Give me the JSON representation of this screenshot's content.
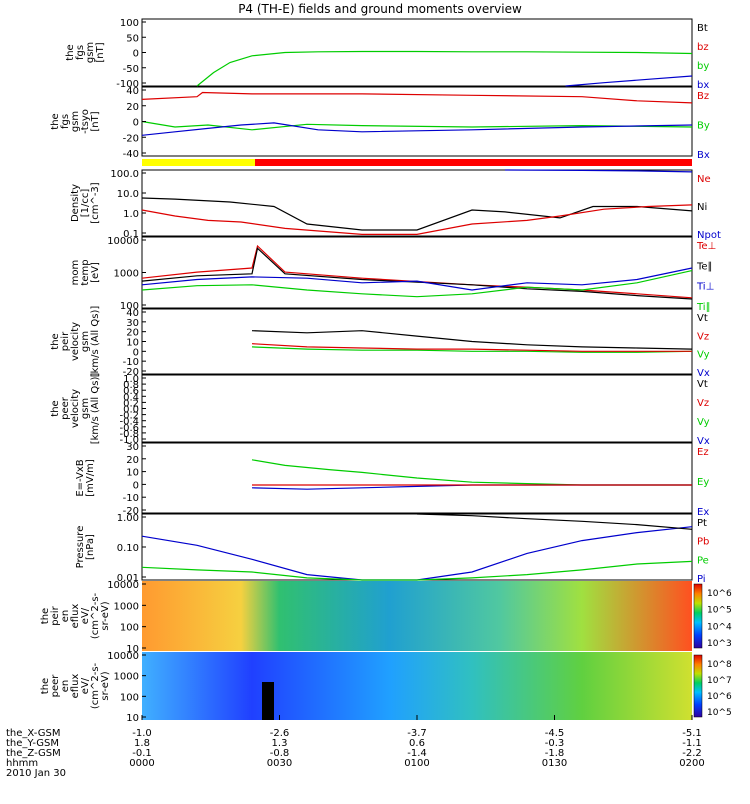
{
  "title": "P4 (TH-E) fields and ground moments overview",
  "colors": {
    "black": "#000000",
    "red": "#dd0000",
    "green": "#00cc00",
    "blue": "#0000cc",
    "yellow": "#ffff00",
    "barred": "#ff0000"
  },
  "chart_data": [
    {
      "id": "p1",
      "type": "line",
      "ylabel": [
        "the",
        "fgs",
        "gsm",
        "[nT]"
      ],
      "yticks": [
        "100",
        "50",
        "0",
        "-50",
        "-100"
      ],
      "ylim": [
        -100,
        100
      ],
      "legend": [
        {
          "name": "Bt",
          "color": "black"
        },
        {
          "name": "bz",
          "color": "red"
        },
        {
          "name": "by",
          "color": "green"
        },
        {
          "name": "bx",
          "color": "blue"
        }
      ],
      "series": [
        {
          "name": "by",
          "color": "green",
          "x": [
            0.5,
            0.65,
            0.8,
            1.0,
            1.3,
            1.6,
            2.0,
            2.5,
            3.0,
            3.5,
            4.0,
            4.5,
            5.0
          ],
          "y": [
            -100,
            -60,
            -30,
            -10,
            0,
            2,
            3,
            3,
            2,
            2,
            1,
            0,
            -3
          ]
        },
        {
          "name": "bx",
          "color": "blue",
          "x": [
            3.85,
            4.2,
            4.6,
            5.0
          ],
          "y": [
            -100,
            -90,
            -80,
            -70
          ]
        }
      ]
    },
    {
      "id": "p2",
      "type": "line",
      "ylabel": [
        "the",
        "fgs",
        "gsm",
        "-tsyo",
        "[nT]"
      ],
      "yticks": [
        "40",
        "20",
        "0",
        "-20",
        "-40"
      ],
      "ylim": [
        -50,
        50
      ],
      "legend": [
        {
          "name": "Bz",
          "color": "red"
        },
        {
          "name": "By",
          "color": "green"
        },
        {
          "name": "Bx",
          "color": "blue"
        }
      ],
      "series": [
        {
          "name": "Bz",
          "color": "red",
          "x": [
            0.0,
            0.5,
            0.55,
            1.0,
            2.0,
            3.0,
            4.0,
            4.5,
            5.0
          ],
          "y": [
            32,
            36,
            42,
            40,
            40,
            38,
            36,
            30,
            27
          ]
        },
        {
          "name": "By",
          "color": "green",
          "x": [
            0.0,
            0.3,
            0.6,
            1.0,
            1.5,
            2.0,
            3.0,
            4.0,
            5.0
          ],
          "y": [
            0,
            -8,
            -5,
            -12,
            -4,
            -6,
            -8,
            -6,
            -8
          ]
        },
        {
          "name": "Bx",
          "color": "blue",
          "x": [
            0.0,
            0.3,
            0.6,
            0.9,
            1.2,
            1.6,
            2.0,
            3.0,
            4.0,
            5.0
          ],
          "y": [
            -20,
            -15,
            -10,
            -5,
            -2,
            -12,
            -15,
            -12,
            -8,
            -5
          ]
        }
      ]
    },
    {
      "id": "p3",
      "type": "line",
      "log": true,
      "ylabel": [
        "Density",
        "[1/cc]",
        "[cm^-3]"
      ],
      "yticks": [
        "100.0",
        "10.0",
        "1.0",
        "0.1"
      ],
      "ylim": [
        0.05,
        100
      ],
      "legend": [
        {
          "name": "Ne",
          "color": "red"
        },
        {
          "name": "Ni",
          "color": "black"
        },
        {
          "name": "Npot",
          "color": "blue"
        }
      ],
      "series": [
        {
          "name": "Ni",
          "color": "black",
          "x": [
            0.0,
            0.3,
            0.8,
            1.2,
            1.5,
            2.0,
            2.5,
            3.0,
            3.3,
            3.8,
            4.1,
            4.5,
            5.0
          ],
          "y": [
            4,
            3.5,
            2.5,
            1.5,
            0.2,
            0.1,
            0.1,
            1.0,
            0.8,
            0.4,
            1.5,
            1.5,
            0.9
          ]
        },
        {
          "name": "Ne",
          "color": "red",
          "x": [
            0.0,
            0.3,
            0.6,
            0.9,
            1.3,
            2.0,
            2.5,
            3.0,
            3.5,
            3.8,
            4.2,
            4.6,
            5.0
          ],
          "y": [
            1.0,
            0.5,
            0.3,
            0.25,
            0.12,
            0.06,
            0.06,
            0.2,
            0.3,
            0.5,
            1.1,
            1.5,
            1.8
          ]
        },
        {
          "name": "Npot",
          "color": "blue",
          "x": [
            3.3,
            4.0,
            4.5,
            5.0
          ],
          "y": [
            100,
            95,
            90,
            80
          ]
        }
      ]
    },
    {
      "id": "p4",
      "type": "line",
      "log": true,
      "ylabel": [
        "mom",
        "temp",
        "[eV]"
      ],
      "yticks": [
        "10000",
        "1000",
        "100"
      ],
      "ylim": [
        50,
        12000
      ],
      "legend": [
        {
          "name": "Te⊥",
          "color": "red"
        },
        {
          "name": "Te∥",
          "color": "black"
        },
        {
          "name": "Ti⊥",
          "color": "blue"
        },
        {
          "name": "Ti∥",
          "color": "green"
        }
      ],
      "series": [
        {
          "name": "Te⊥",
          "color": "red",
          "x": [
            0.0,
            0.5,
            1.0,
            1.05,
            1.3,
            2.0,
            3.0,
            3.5,
            4.0,
            4.5,
            5.0
          ],
          "y": [
            500,
            800,
            1100,
            6000,
            800,
            500,
            300,
            250,
            200,
            150,
            110
          ]
        },
        {
          "name": "Te∥",
          "color": "black",
          "x": [
            0.0,
            0.5,
            1.0,
            1.05,
            1.3,
            2.0,
            3.0,
            3.5,
            4.0,
            4.5,
            5.0
          ],
          "y": [
            400,
            600,
            700,
            5000,
            700,
            450,
            300,
            220,
            180,
            130,
            100
          ]
        },
        {
          "name": "Ti⊥",
          "color": "blue",
          "x": [
            0.0,
            0.5,
            1.0,
            1.5,
            2.0,
            2.5,
            3.0,
            3.5,
            4.0,
            4.5,
            5.0
          ],
          "y": [
            300,
            450,
            550,
            500,
            350,
            400,
            200,
            350,
            300,
            450,
            1100
          ]
        },
        {
          "name": "Ti∥",
          "color": "green",
          "x": [
            0.0,
            0.5,
            1.0,
            1.5,
            2.0,
            2.5,
            3.0,
            3.5,
            4.0,
            4.5,
            5.0
          ],
          "y": [
            200,
            280,
            300,
            200,
            150,
            120,
            150,
            250,
            200,
            350,
            900
          ]
        }
      ]
    },
    {
      "id": "p5",
      "type": "line",
      "ylabel": [
        "the",
        "peir",
        "velocity",
        "gsm",
        "[km/s (All Qs)]"
      ],
      "yticks": [
        "40",
        "30",
        "20",
        "10",
        "0",
        "-10",
        "-20"
      ],
      "ylim": [
        -20,
        40
      ],
      "legend": [
        {
          "name": "Vt",
          "color": "black"
        },
        {
          "name": "Vz",
          "color": "red"
        },
        {
          "name": "Vy",
          "color": "green"
        },
        {
          "name": "Vx",
          "color": "blue"
        }
      ],
      "series": [
        {
          "name": "Vt",
          "color": "black",
          "x": [
            1.0,
            1.5,
            2.0,
            2.5,
            3.0,
            3.5,
            4.0,
            4.5,
            5.0
          ],
          "y": [
            20,
            18,
            20,
            15,
            10,
            7,
            5,
            4,
            3
          ]
        },
        {
          "name": "Vy",
          "color": "green",
          "x": [
            1.0,
            1.5,
            2.0,
            2.5,
            3.0,
            3.5,
            4.0,
            4.5,
            5.0
          ],
          "y": [
            5,
            3,
            2,
            2,
            1,
            1,
            0,
            0,
            1
          ]
        },
        {
          "name": "Vz",
          "color": "red",
          "x": [
            1.0,
            1.5,
            2.0,
            2.5,
            3.0,
            3.5,
            4.0,
            4.5,
            5.0
          ],
          "y": [
            8,
            5,
            4,
            3,
            3,
            2,
            1,
            1,
            1
          ]
        }
      ]
    },
    {
      "id": "p6",
      "type": "line",
      "ylabel": [
        "the",
        "peer",
        "velocity",
        "gsm",
        "[km/s (All Qs)]"
      ],
      "yticks": [
        "1.0",
        "0.8",
        "0.6",
        "0.4",
        "0.2",
        "0.0",
        "-0.2",
        "-0.4",
        "-0.6",
        "-0.8",
        "-1.0"
      ],
      "ylim": [
        -1,
        1
      ],
      "legend": [
        {
          "name": "Vt",
          "color": "black"
        },
        {
          "name": "Vz",
          "color": "red"
        },
        {
          "name": "Vy",
          "color": "green"
        },
        {
          "name": "Vx",
          "color": "blue"
        }
      ],
      "series": []
    },
    {
      "id": "p7",
      "type": "line",
      "ylabel": [
        "E=-VxB",
        "[mV/m]"
      ],
      "yticks": [
        "30",
        "20",
        "10",
        "0",
        "-10",
        "-20"
      ],
      "ylim": [
        -20,
        30
      ],
      "legend": [
        {
          "name": "Ez",
          "color": "red"
        },
        {
          "name": "Ey",
          "color": "green"
        },
        {
          "name": "Ex",
          "color": "blue"
        }
      ],
      "series": [
        {
          "name": "Ey",
          "color": "green",
          "x": [
            1.0,
            1.3,
            1.7,
            2.0,
            2.5,
            3.0,
            3.5,
            4.0,
            4.5,
            5.0
          ],
          "y": [
            18,
            14,
            11,
            9,
            5,
            2,
            1,
            0,
            0,
            0
          ]
        },
        {
          "name": "Ex",
          "color": "blue",
          "x": [
            1.0,
            1.5,
            2.0,
            2.5,
            3.0,
            3.5,
            4.0,
            5.0
          ],
          "y": [
            -2,
            -3,
            -2,
            -1,
            0,
            0,
            0,
            0
          ]
        },
        {
          "name": "Ez",
          "color": "red",
          "x": [
            1.0,
            1.5,
            2.0,
            2.5,
            3.0,
            3.5,
            4.0,
            5.0
          ],
          "y": [
            0,
            0,
            0,
            0,
            0,
            0,
            0,
            0
          ]
        }
      ]
    },
    {
      "id": "p8",
      "type": "line",
      "log": true,
      "ylabel": [
        "Pressure",
        "[nPa]"
      ],
      "yticks": [
        "1.00",
        "0.10",
        "0.01"
      ],
      "ylim": [
        0.005,
        1.5
      ],
      "legend": [
        {
          "name": "Pt",
          "color": "black"
        },
        {
          "name": "Pb",
          "color": "red"
        },
        {
          "name": "Pe",
          "color": "green"
        },
        {
          "name": "Pi",
          "color": "blue"
        }
      ],
      "series": [
        {
          "name": "Pi",
          "color": "blue",
          "x": [
            0.0,
            0.5,
            1.0,
            1.5,
            2.0,
            2.5,
            3.0,
            3.5,
            4.0,
            4.5,
            5.0
          ],
          "y": [
            0.22,
            0.1,
            0.03,
            0.008,
            0.005,
            0.005,
            0.01,
            0.05,
            0.15,
            0.3,
            0.5
          ]
        },
        {
          "name": "Pe",
          "color": "green",
          "x": [
            0.0,
            0.5,
            1.0,
            1.5,
            2.0,
            2.5,
            3.0,
            3.5,
            4.0,
            4.5,
            5.0
          ],
          "y": [
            0.015,
            0.012,
            0.01,
            0.006,
            0.005,
            0.005,
            0.006,
            0.008,
            0.012,
            0.02,
            0.025
          ]
        },
        {
          "name": "Pt",
          "color": "black",
          "x": [
            2.5,
            3.0,
            3.5,
            4.0,
            4.5,
            5.0
          ],
          "y": [
            1.5,
            1.3,
            1.0,
            0.8,
            0.6,
            0.4
          ]
        }
      ]
    },
    {
      "id": "p9",
      "type": "heatmap",
      "ylabel": [
        "the",
        "peir",
        "en",
        "eflux",
        "eV/",
        "(cm^2-s-",
        "sr-eV)"
      ],
      "yticks": [
        "10000",
        "1000",
        "100",
        "10"
      ],
      "colorbar_ticks": [
        "10^6",
        "10^5",
        "10^4",
        "10^3"
      ]
    },
    {
      "id": "p10",
      "type": "heatmap",
      "ylabel": [
        "the",
        "peer",
        "en",
        "eflux",
        "eV/",
        "(cm^2-s-",
        "sr-eV)"
      ],
      "yticks": [
        "10000",
        "1000",
        "100",
        "10"
      ],
      "colorbar_ticks": [
        "10^8",
        "10^7",
        "10^6",
        "10^5"
      ]
    }
  ],
  "xaxis": {
    "row_labels": [
      "the_X-GSM",
      "the_Y-GSM",
      "the_Z-GSM",
      "hhmm",
      "2010 Jan 30"
    ],
    "ticks": [
      {
        "x": 0,
        "vals": [
          "-1.0",
          "1.8",
          "-0.1",
          "0000"
        ]
      },
      {
        "x": 1,
        "vals": [
          "-2.6",
          "1.3",
          "-0.8",
          "0030"
        ]
      },
      {
        "x": 2,
        "vals": [
          "-3.7",
          "0.6",
          "-1.4",
          "0100"
        ]
      },
      {
        "x": 3,
        "vals": [
          "-4.5",
          "-0.3",
          "-1.8",
          "0130"
        ]
      },
      {
        "x": 4,
        "vals": [
          "-5.1",
          "-1.1",
          "-2.2",
          "0200"
        ]
      }
    ]
  }
}
